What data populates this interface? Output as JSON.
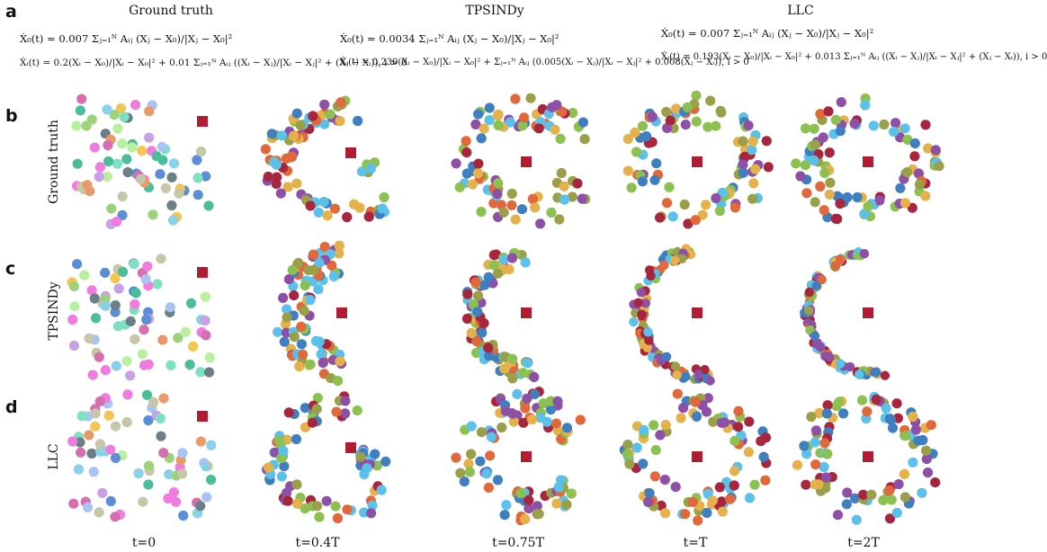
{
  "panel_labels": {
    "a": "a",
    "b": "b",
    "c": "c",
    "d": "d"
  },
  "column_heads": {
    "gt": "Ground truth",
    "tps": "TPSINDy",
    "llc": "LLC"
  },
  "equations": {
    "gt": {
      "leader": "Ẋ₀(t) = 0.007 Σⱼ₌₁ᴺ Aᵢⱼ (Xⱼ − X₀)/|Xⱼ − X₀|²",
      "follower": "Ẋᵢ(t) = 0.2(Xᵢ − X₀)/|Xᵢ − X₀|² + 0.01 Σⱼ₌₁ᴺ Aᵢⱼ ((Xᵢ − Xⱼ)/|Xᵢ − Xⱼ|² + (Xⱼ − Xᵢ)), i > 0"
    },
    "tps": {
      "leader": "Ẋ₀(t) = 0.0034 Σⱼ₌₁ᴺ Aᵢⱼ (Xⱼ − X₀)/|Xⱼ − X₀|²",
      "follower": "Ẋᵢ(t) = 0.230(Xᵢ − X₀)/|Xᵢ − X₀|² + Σⱼ₌₁ᴺ Aᵢⱼ (0.005(Xᵢ − Xⱼ)/|Xᵢ − Xⱼ|² + 0.008(Xⱼ − Xᵢ)), i > 0"
    },
    "llc": {
      "leader": "Ẋ₀(t) = 0.007 Σⱼ₌₁ᴺ Aᵢⱼ (Xⱼ − X₀)/|Xⱼ − X₀|²",
      "follower": "Ẋᵢ(t) = 0.193(Xᵢ − X₀)/|Xᵢ − X₀|² + 0.013 Σⱼ₌₁ᴺ Aᵢⱼ ((Xᵢ − Xⱼ)/|Xᵢ − Xⱼ|² + (Xⱼ − Xᵢ)), i > 0"
    }
  },
  "row_labels": {
    "b": "Ground truth",
    "c": "TPSINDy",
    "d": "LLC"
  },
  "time_labels": [
    "t=0",
    "t=0.4T",
    "t=0.75T",
    "t=T",
    "t=2T"
  ],
  "colors": {
    "leader": "#b11c32",
    "initial_palette": [
      "#5b8ed6",
      "#9bd27a",
      "#f07ce0",
      "#6b7f86",
      "#c9a0e6",
      "#f3c552",
      "#8ad0e8",
      "#b9f0a0",
      "#e99a6a",
      "#4bbd9a",
      "#d66fb0",
      "#a9c4f2",
      "#7ee0c2",
      "#c6c6a8"
    ],
    "converged_palette": [
      "#5cc1ea",
      "#8e4fa6",
      "#8cc152",
      "#e5b14a",
      "#e0683a",
      "#3f7fc0",
      "#a8263d",
      "#9aa04a"
    ]
  },
  "panels": [
    {
      "row": "b",
      "col": 0,
      "pattern": "initial",
      "n": 70,
      "seed": 11
    },
    {
      "row": "b",
      "col": 1,
      "pattern": "arc_open_tr",
      "n": 80,
      "seed": 21
    },
    {
      "row": "b",
      "col": 2,
      "pattern": "ring_open_r",
      "n": 90,
      "seed": 31
    },
    {
      "row": "b",
      "col": 3,
      "pattern": "ring",
      "n": 92,
      "seed": 41
    },
    {
      "row": "b",
      "col": 4,
      "pattern": "ring",
      "n": 92,
      "seed": 51
    },
    {
      "row": "c",
      "col": 0,
      "pattern": "initial",
      "n": 70,
      "seed": 12
    },
    {
      "row": "c",
      "col": 1,
      "pattern": "crescent_wide",
      "n": 85,
      "seed": 22
    },
    {
      "row": "c",
      "col": 2,
      "pattern": "crescent_mid",
      "n": 85,
      "seed": 32
    },
    {
      "row": "c",
      "col": 3,
      "pattern": "crescent_thin",
      "n": 90,
      "seed": 42
    },
    {
      "row": "c",
      "col": 4,
      "pattern": "crescent_line",
      "n": 95,
      "seed": 52
    },
    {
      "row": "d",
      "col": 0,
      "pattern": "initial",
      "n": 70,
      "seed": 13
    },
    {
      "row": "d",
      "col": 1,
      "pattern": "arc_open_tr",
      "n": 80,
      "seed": 23
    },
    {
      "row": "d",
      "col": 2,
      "pattern": "ring_open_r",
      "n": 90,
      "seed": 33
    },
    {
      "row": "d",
      "col": 3,
      "pattern": "ring",
      "n": 92,
      "seed": 43
    },
    {
      "row": "d",
      "col": 4,
      "pattern": "ring",
      "n": 92,
      "seed": 53
    }
  ]
}
